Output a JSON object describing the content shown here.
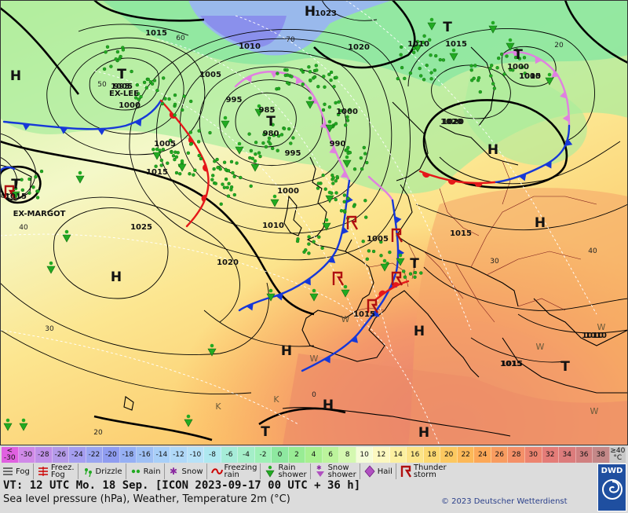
{
  "map": {
    "pressure_centres": [
      {
        "letter": "H",
        "pressure": "1023"
      },
      {
        "letter": "T",
        "pressure": "1005"
      },
      {
        "letter": "T",
        "pressure": "995",
        "name": "EX-LEE"
      },
      {
        "letter": "T",
        "pressure": "980"
      },
      {
        "letter": "T",
        "pressure": "1000"
      },
      {
        "letter": "T",
        "pressure": "1015",
        "name": "EX-MARGOT"
      },
      {
        "letter": "H",
        "pressure": ""
      },
      {
        "letter": "H",
        "pressure": ""
      },
      {
        "letter": "H",
        "pressure": ""
      },
      {
        "letter": "H",
        "pressure": ""
      },
      {
        "letter": "H",
        "pressure": ""
      },
      {
        "letter": "H",
        "pressure": ""
      },
      {
        "letter": "H",
        "pressure": ""
      },
      {
        "letter": "H",
        "pressure": ""
      },
      {
        "letter": "T",
        "pressure": ""
      },
      {
        "letter": "T",
        "pressure": ""
      },
      {
        "letter": "T",
        "pressure": ""
      },
      {
        "letter": "T",
        "pressure": ""
      }
    ],
    "isobar_labels": [
      "1015",
      "1010",
      "1005",
      "1000",
      "995",
      "1000",
      "1005",
      "1010",
      "1015",
      "1020",
      "1025",
      "1020",
      "1015",
      "985",
      "990",
      "995",
      "1000",
      "1005",
      "1010",
      "1020",
      "1010",
      "1015",
      "1015",
      "1010",
      "1005",
      "1020",
      "1015"
    ],
    "temperature_labels": [
      "60",
      "70",
      "50",
      "40",
      "30",
      "20",
      "20",
      "0",
      "40",
      "30"
    ],
    "letters_w_k": [
      "W",
      "W",
      "W",
      "W",
      "K",
      "K",
      "W"
    ],
    "colors": {
      "warm_front": "#e5181a",
      "cold_front": "#1638d8",
      "occlusion": "#e080e0",
      "rain_dot": "#22aa22",
      "coast": "#000000",
      "isobar": "#000000"
    }
  },
  "legend": {
    "temperature_scale": [
      {
        "label": "<\n-30",
        "color": "#e060e0"
      },
      {
        "label": "-30",
        "color": "#d08ae8"
      },
      {
        "label": "-28",
        "color": "#c090e8"
      },
      {
        "label": "-26",
        "color": "#b49ae8"
      },
      {
        "label": "-24",
        "color": "#a59ef0"
      },
      {
        "label": "-22",
        "color": "#9aa5f0"
      },
      {
        "label": "-20",
        "color": "#8f9cf0"
      },
      {
        "label": "-18",
        "color": "#96b0f4"
      },
      {
        "label": "-16",
        "color": "#9fc0f4"
      },
      {
        "label": "-14",
        "color": "#a8cff8"
      },
      {
        "label": "-12",
        "color": "#b0d8f8"
      },
      {
        "label": "-10",
        "color": "#b7e2f8"
      },
      {
        "label": "-8",
        "color": "#aee8f0"
      },
      {
        "label": "-6",
        "color": "#a6ecd8"
      },
      {
        "label": "-4",
        "color": "#a4eec8"
      },
      {
        "label": "-2",
        "color": "#9ef0b6"
      },
      {
        "label": "0",
        "color": "#8ee8a0"
      },
      {
        "label": "2",
        "color": "#98ec94"
      },
      {
        "label": "4",
        "color": "#a8f090"
      },
      {
        "label": "6",
        "color": "#bcf49c"
      },
      {
        "label": "8",
        "color": "#d4f8b0"
      },
      {
        "label": "10",
        "color": "#f4fcd8"
      },
      {
        "label": "12",
        "color": "#fcf8c0"
      },
      {
        "label": "14",
        "color": "#fcf0a0"
      },
      {
        "label": "16",
        "color": "#fce488"
      },
      {
        "label": "18",
        "color": "#fcd870"
      },
      {
        "label": "20",
        "color": "#fcc860"
      },
      {
        "label": "22",
        "color": "#fcb858"
      },
      {
        "label": "24",
        "color": "#fca858"
      },
      {
        "label": "26",
        "color": "#f89c60"
      },
      {
        "label": "28",
        "color": "#f49068"
      },
      {
        "label": "30",
        "color": "#ec8470"
      },
      {
        "label": "32",
        "color": "#e47c78"
      },
      {
        "label": "34",
        "color": "#dc7c7c"
      },
      {
        "label": "36",
        "color": "#d08080"
      },
      {
        "label": "38",
        "color": "#c48888"
      },
      {
        "label": "≥40\n°C",
        "color": "#c8c8c8"
      }
    ],
    "symbols": [
      {
        "icon": "fog-icon",
        "label": "Fog"
      },
      {
        "icon": "freezing-fog-icon",
        "label": "Freez.\nFog"
      },
      {
        "icon": "drizzle-icon",
        "label": "Drizzle"
      },
      {
        "icon": "rain-icon",
        "label": "Rain"
      },
      {
        "icon": "snow-icon",
        "label": "Snow"
      },
      {
        "icon": "freezing-rain-icon",
        "label": "Freezing\nrain"
      },
      {
        "icon": "rain-shower-icon",
        "label": "Rain\nshower"
      },
      {
        "icon": "snow-shower-icon",
        "label": "Snow\nshower"
      },
      {
        "icon": "hail-icon",
        "label": "Hail"
      },
      {
        "icon": "thunderstorm-icon",
        "label": "Thunder\nstorm"
      }
    ],
    "valid_time": "VT: 12 UTC Mo.  18 Sep. [ICON 2023-09-17  00 UTC + 36 h]",
    "subtitle": "Sea level pressure (hPa), Weather, Temperature 2m (°C)",
    "copyright": "© 2023 Deutscher Wetterdienst",
    "logo_text": "DWD"
  }
}
